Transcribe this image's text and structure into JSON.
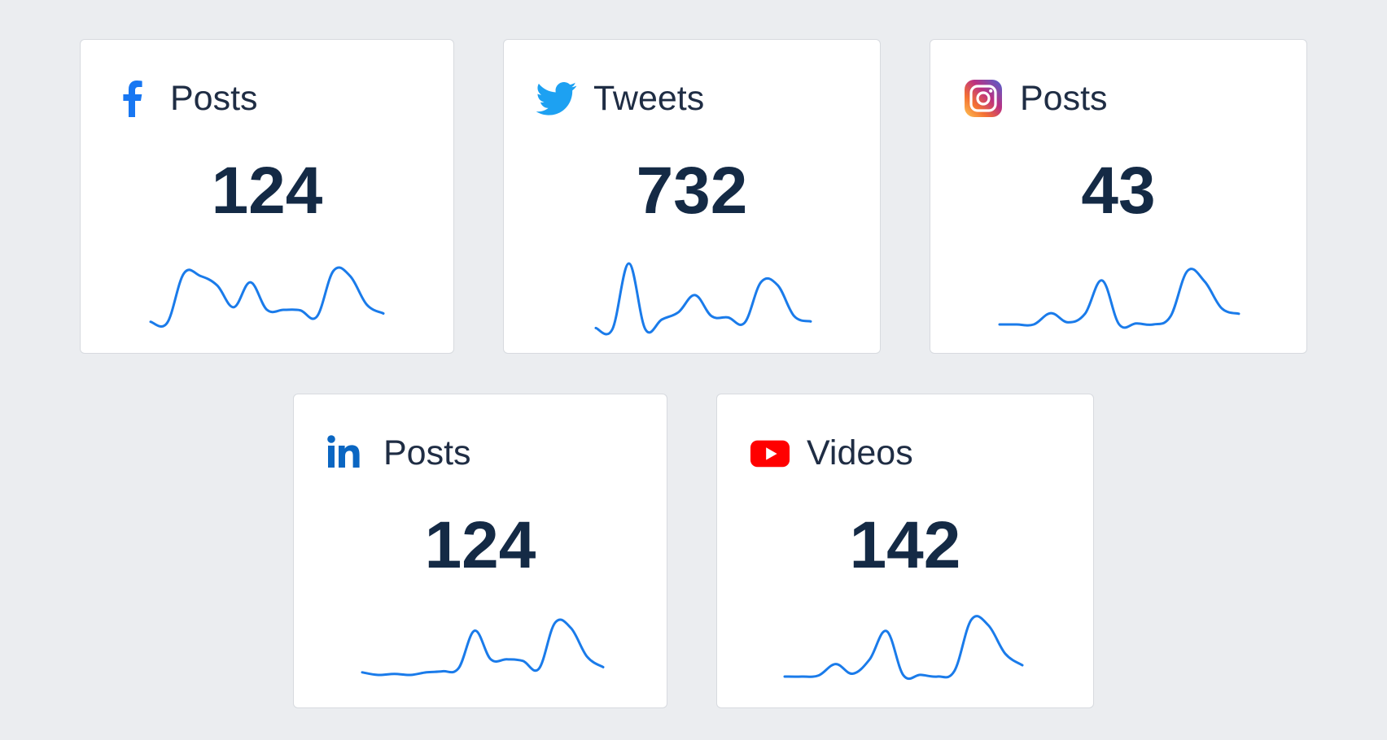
{
  "line_color": "#1A7BEA",
  "cards": [
    {
      "platform": "Facebook",
      "icon": "facebook-icon",
      "label": "Posts",
      "value": "124",
      "trend": [
        0.02,
        0.0,
        0.95,
        0.9,
        0.72,
        0.3,
        0.78,
        0.25,
        0.25,
        0.24,
        0.12,
        1.0,
        0.9,
        0.35,
        0.18
      ]
    },
    {
      "platform": "Twitter",
      "icon": "twitter-icon",
      "label": "Tweets",
      "value": "732",
      "trend": [
        0.02,
        0.0,
        1.0,
        0.0,
        0.15,
        0.26,
        0.52,
        0.2,
        0.18,
        0.1,
        0.72,
        0.67,
        0.2,
        0.12
      ]
    },
    {
      "platform": "Instagram",
      "icon": "instagram-icon",
      "label": "Posts",
      "value": "43",
      "trend": [
        0.0,
        0.0,
        0.0,
        0.21,
        0.04,
        0.2,
        0.82,
        0.0,
        0.02,
        0.0,
        0.15,
        1.0,
        0.8,
        0.3,
        0.2
      ]
    },
    {
      "platform": "LinkedIn",
      "icon": "linkedin-icon",
      "label": "Posts",
      "value": "124",
      "trend": [
        0.05,
        0.0,
        0.02,
        0.0,
        0.05,
        0.07,
        0.13,
        0.85,
        0.3,
        0.3,
        0.27,
        0.12,
        1.0,
        0.9,
        0.35,
        0.15
      ]
    },
    {
      "platform": "YouTube",
      "icon": "youtube-icon",
      "label": "Videos",
      "value": "142",
      "trend": [
        0.0,
        0.0,
        0.02,
        0.22,
        0.05,
        0.3,
        0.8,
        0.02,
        0.03,
        0.0,
        0.1,
        1.0,
        0.9,
        0.4,
        0.2
      ]
    }
  ]
}
